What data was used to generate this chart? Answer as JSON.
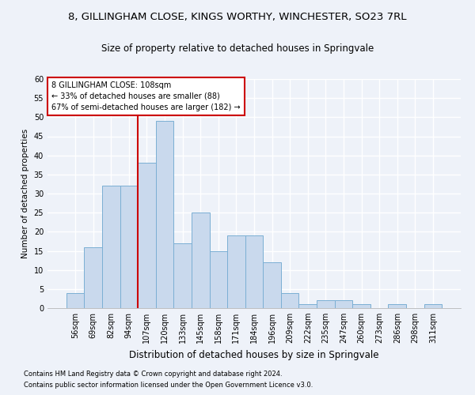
{
  "title": "8, GILLINGHAM CLOSE, KINGS WORTHY, WINCHESTER, SO23 7RL",
  "subtitle": "Size of property relative to detached houses in Springvale",
  "xlabel": "Distribution of detached houses by size in Springvale",
  "ylabel": "Number of detached properties",
  "categories": [
    "56sqm",
    "69sqm",
    "82sqm",
    "94sqm",
    "107sqm",
    "120sqm",
    "133sqm",
    "145sqm",
    "158sqm",
    "171sqm",
    "184sqm",
    "196sqm",
    "209sqm",
    "222sqm",
    "235sqm",
    "247sqm",
    "260sqm",
    "273sqm",
    "286sqm",
    "298sqm",
    "311sqm"
  ],
  "values": [
    4,
    16,
    32,
    32,
    38,
    49,
    17,
    25,
    15,
    19,
    19,
    12,
    4,
    1,
    2,
    2,
    1,
    0,
    1,
    0,
    1
  ],
  "bar_color": "#c9d9ed",
  "bar_edge_color": "#7bafd4",
  "vline_x_index": 4,
  "vline_color": "#cc0000",
  "annotation_title": "8 GILLINGHAM CLOSE: 108sqm",
  "annotation_line1": "← 33% of detached houses are smaller (88)",
  "annotation_line2": "67% of semi-detached houses are larger (182) →",
  "annotation_box_color": "#ffffff",
  "annotation_box_edge": "#cc0000",
  "ylim": [
    0,
    60
  ],
  "yticks": [
    0,
    5,
    10,
    15,
    20,
    25,
    30,
    35,
    40,
    45,
    50,
    55,
    60
  ],
  "footer1": "Contains HM Land Registry data © Crown copyright and database right 2024.",
  "footer2": "Contains public sector information licensed under the Open Government Licence v3.0.",
  "bg_color": "#eef2f9",
  "grid_color": "#ffffff",
  "title_fontsize": 9.5,
  "subtitle_fontsize": 8.5,
  "xlabel_fontsize": 8.5,
  "ylabel_fontsize": 7.5,
  "tick_fontsize": 7,
  "annotation_fontsize": 7,
  "footer_fontsize": 6
}
